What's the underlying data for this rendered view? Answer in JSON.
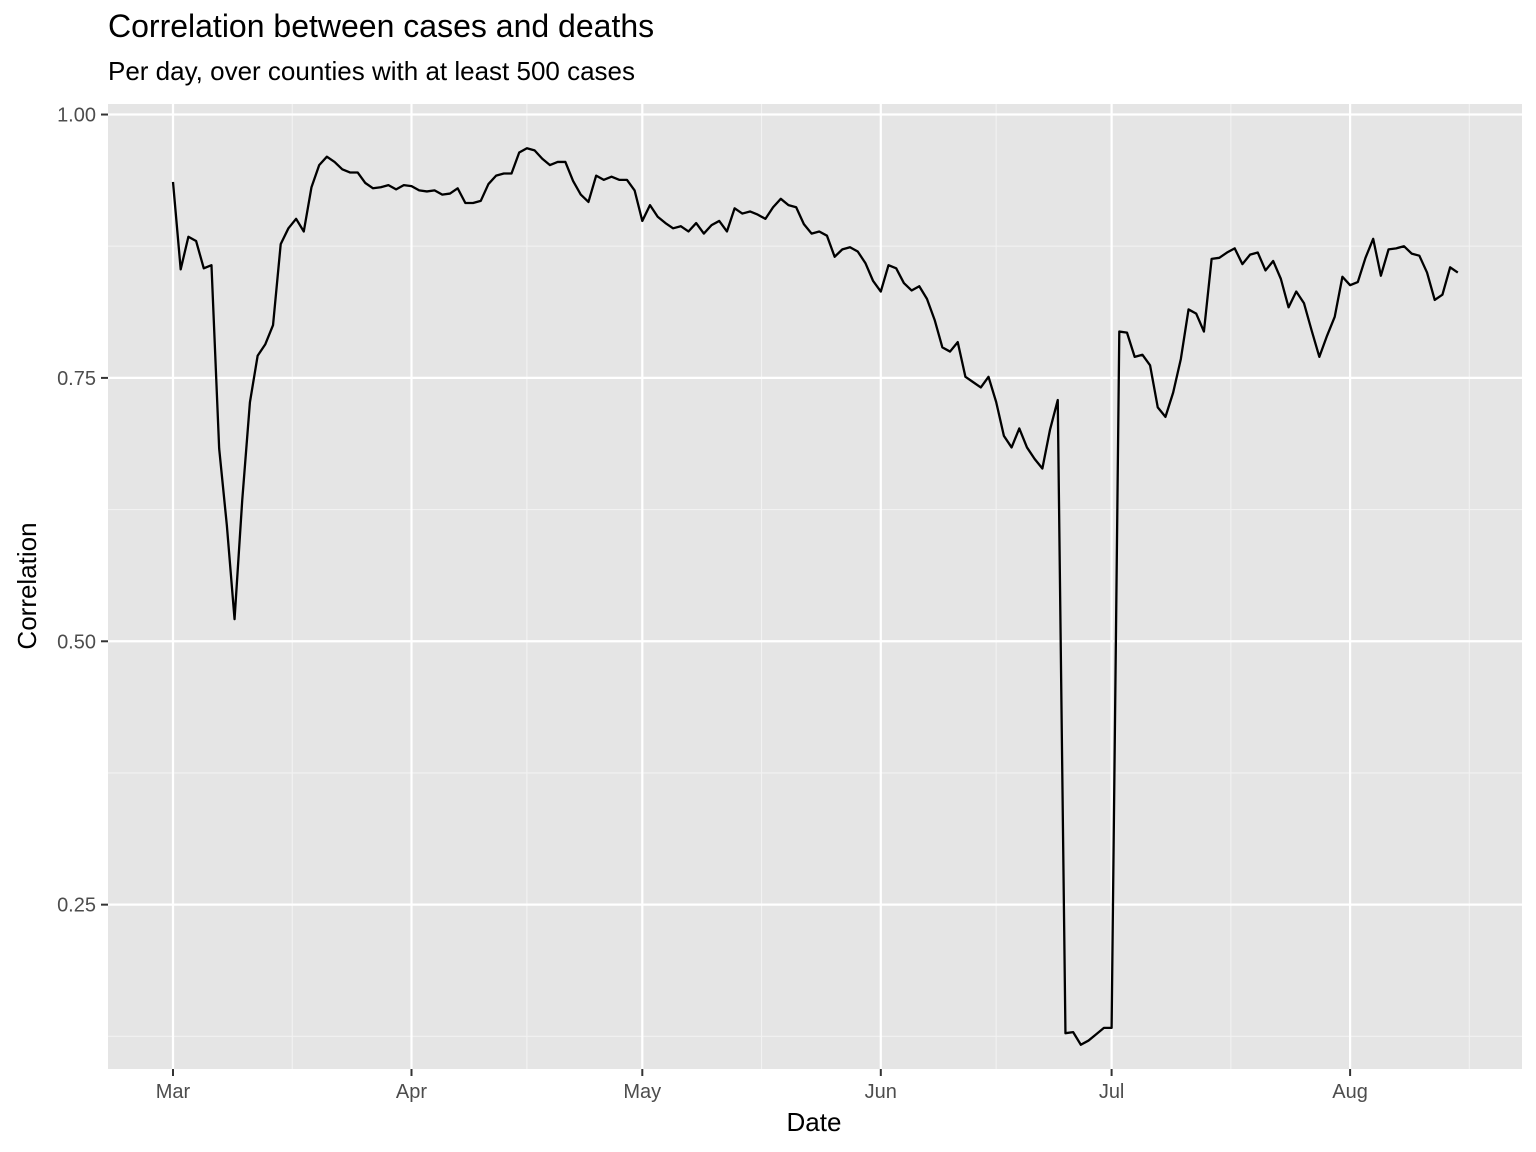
{
  "chart_data": {
    "type": "line",
    "title": "Correlation between cases and deaths",
    "subtitle": "Per day, over counties with at least 500 cases",
    "xlabel": "Date",
    "ylabel": "Correlation",
    "ylim": [
      0.094,
      1.01
    ],
    "y_ticks": [
      {
        "value": 0.25,
        "label": "0.25"
      },
      {
        "value": 0.5,
        "label": "0.50"
      },
      {
        "value": 0.75,
        "label": "0.75"
      },
      {
        "value": 1.0,
        "label": "1.00"
      }
    ],
    "x_ticks": [
      {
        "day": 0,
        "label": "Mar"
      },
      {
        "day": 31,
        "label": "Apr"
      },
      {
        "day": 61,
        "label": "May"
      },
      {
        "day": 92,
        "label": "Jun"
      },
      {
        "day": 122,
        "label": "Jul"
      },
      {
        "day": 153,
        "label": "Aug"
      }
    ],
    "series": [
      {
        "color": "#000000",
        "x_start": "2020-03-01",
        "values": [
          0.936,
          0.853,
          0.884,
          0.88,
          0.854,
          0.857,
          0.683,
          0.61,
          0.521,
          0.634,
          0.727,
          0.771,
          0.782,
          0.8,
          0.877,
          0.892,
          0.901,
          0.889,
          0.931,
          0.952,
          0.96,
          0.955,
          0.948,
          0.945,
          0.945,
          0.935,
          0.93,
          0.931,
          0.933,
          0.929,
          0.933,
          0.932,
          0.928,
          0.927,
          0.928,
          0.924,
          0.925,
          0.93,
          0.916,
          0.916,
          0.918,
          0.934,
          0.942,
          0.944,
          0.944,
          0.964,
          0.968,
          0.966,
          0.958,
          0.952,
          0.955,
          0.955,
          0.937,
          0.924,
          0.917,
          0.942,
          0.938,
          0.941,
          0.938,
          0.938,
          0.928,
          0.899,
          0.914,
          0.903,
          0.897,
          0.892,
          0.894,
          0.889,
          0.897,
          0.887,
          0.895,
          0.899,
          0.889,
          0.911,
          0.906,
          0.908,
          0.905,
          0.901,
          0.912,
          0.92,
          0.914,
          0.912,
          0.896,
          0.887,
          0.889,
          0.885,
          0.865,
          0.872,
          0.874,
          0.87,
          0.859,
          0.842,
          0.832,
          0.857,
          0.854,
          0.84,
          0.833,
          0.837,
          0.825,
          0.805,
          0.779,
          0.775,
          0.784,
          0.751,
          0.746,
          0.741,
          0.751,
          0.727,
          0.695,
          0.684,
          0.702,
          0.684,
          0.673,
          0.664,
          0.701,
          0.729,
          0.128,
          0.129,
          0.117,
          0.121,
          0.127,
          0.133,
          0.133,
          0.794,
          0.793,
          0.77,
          0.772,
          0.762,
          0.722,
          0.713,
          0.736,
          0.768,
          0.815,
          0.811,
          0.794,
          0.863,
          0.864,
          0.869,
          0.873,
          0.858,
          0.867,
          0.869,
          0.852,
          0.861,
          0.844,
          0.817,
          0.832,
          0.821,
          0.795,
          0.77,
          0.79,
          0.808,
          0.846,
          0.838,
          0.841,
          0.864,
          0.882,
          0.847,
          0.872,
          0.873,
          0.875,
          0.868,
          0.866,
          0.85,
          0.824,
          0.829,
          0.855,
          0.85
        ]
      }
    ],
    "grid": true,
    "legend": "none"
  },
  "colors": {
    "panel_background": "#e5e5e5",
    "grid_major": "#ffffff",
    "grid_minor": "#f2f2f2",
    "line": "#000000",
    "tick_text": "#4d4d4d",
    "tick_mark": "#333333"
  }
}
